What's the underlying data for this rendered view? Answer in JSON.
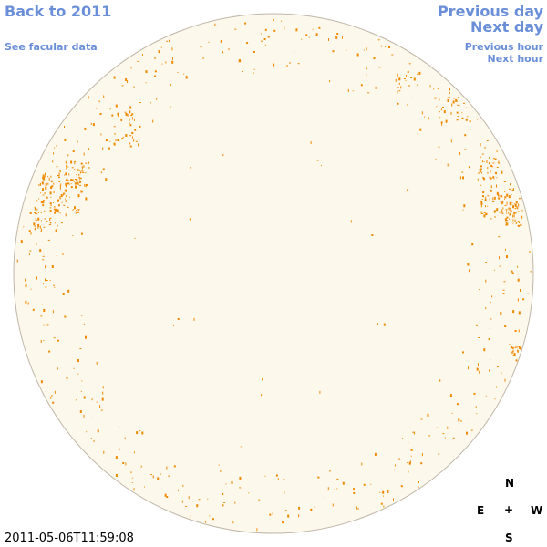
{
  "nav": {
    "back": "Back to 2011",
    "facular": "See facular data",
    "prev_day": "Previous day",
    "next_day": "Next day",
    "prev_hour": "Previous hour",
    "next_hour": "Next hour"
  },
  "timestamp": "2011-05-06T11:59:08",
  "compass": {
    "north": "N",
    "south": "S",
    "east": "E",
    "west": "W",
    "center": "+"
  },
  "colors": {
    "disk": "#fdf8ec",
    "limb": "#bfb7a8",
    "facula": "#ee8a00",
    "link": "#6a8fd8"
  },
  "image_type": "solar-disk-map-with-facular-regions"
}
